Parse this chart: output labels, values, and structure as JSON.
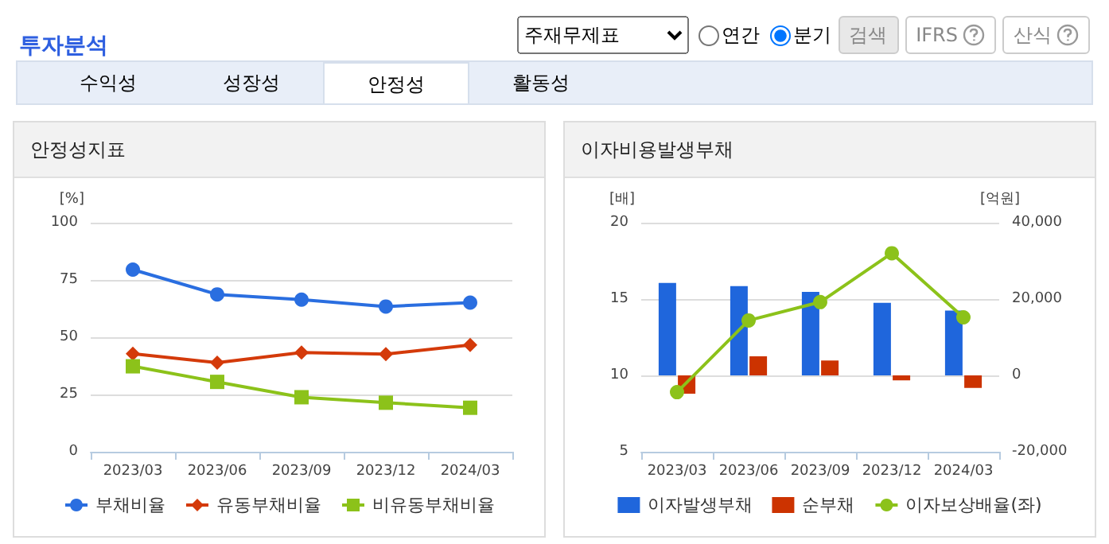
{
  "chart_data": [
    {
      "type": "other",
      "title": "투자분석",
      "annotations": [
        "주재무제표",
        "연간",
        "분기",
        "검색",
        "IFRS",
        "산식",
        "수익성",
        "성장성",
        "안정성",
        "활동성"
      ]
    },
    {
      "type": "line",
      "title": "안정성지표",
      "ylabel": "[%]",
      "categories": [
        "2023/03",
        "2023/06",
        "2023/09",
        "2023/12",
        "2024/03"
      ],
      "series": [
        {
          "name": "부채비율",
          "color": "#2a6ee0",
          "marker": "circle",
          "values": [
            79.5,
            68.7,
            66.4,
            63.4,
            65.1
          ]
        },
        {
          "name": "유동부채비율",
          "color": "#d43a0a",
          "marker": "diamond",
          "values": [
            42.8,
            38.9,
            43.3,
            42.6,
            46.6
          ]
        },
        {
          "name": "비유동부채비율",
          "color": "#8cc21a",
          "marker": "square",
          "values": [
            37.3,
            30.5,
            23.8,
            21.4,
            19.2
          ]
        }
      ],
      "ylim": [
        0,
        100
      ],
      "yticks": [
        0,
        25,
        50,
        75,
        100
      ],
      "grid": "y",
      "legend": "bottom"
    },
    {
      "type": "bar",
      "title": "이자비용발생부채",
      "ylabel": "[배]",
      "y2label": "[억원]",
      "categories": [
        "2023/03",
        "2023/06",
        "2023/09",
        "2023/12",
        "2024/03"
      ],
      "series": [
        {
          "name": "이자발생부채",
          "color": "#1f66dc",
          "axis": "y2",
          "values": [
            24200,
            23400,
            21900,
            19000,
            17000
          ]
        },
        {
          "name": "순부채",
          "color": "#cc3300",
          "axis": "y2",
          "values": [
            -4800,
            5000,
            3900,
            -1300,
            -3300
          ]
        },
        {
          "name": "이자보상배율(좌)",
          "type": "line",
          "color": "#8cc21a",
          "marker": "circle",
          "axis": "y",
          "values": [
            8.9,
            13.6,
            14.8,
            18.0,
            13.8
          ]
        }
      ],
      "ylim": [
        5,
        20
      ],
      "yticks": [
        5,
        10,
        15,
        20
      ],
      "y2lim": [
        -20000,
        40000
      ],
      "y2ticks": [
        {
          "value": -20000,
          "label": "-20,000"
        },
        {
          "value": 0,
          "label": "0"
        },
        {
          "value": 20000,
          "label": "20,000"
        },
        {
          "value": 40000,
          "label": "40,000"
        }
      ],
      "grid": "y",
      "legend": "bottom"
    }
  ]
}
